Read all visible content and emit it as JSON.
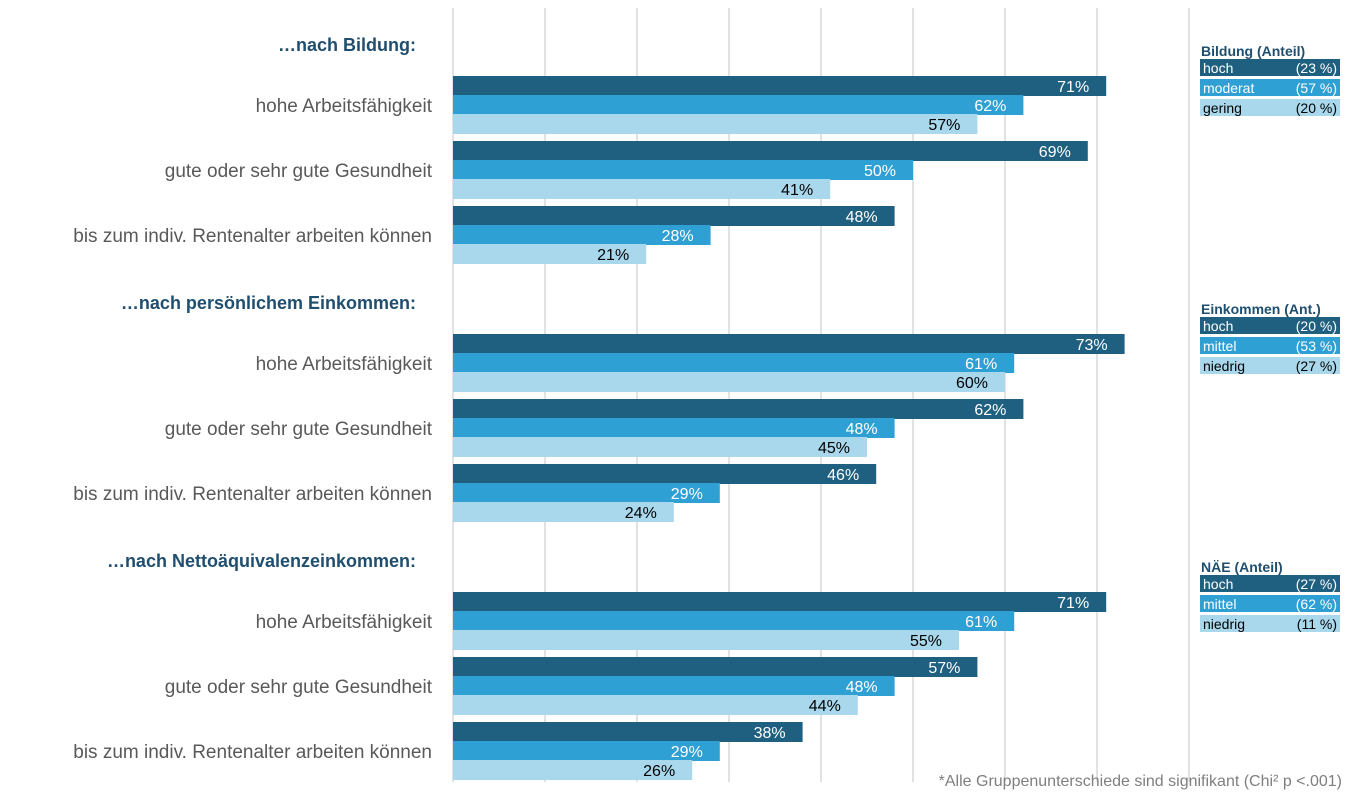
{
  "chart_data": {
    "type": "bar",
    "orientation": "horizontal",
    "xlim": [
      0,
      100
    ],
    "grid": true,
    "colors": {
      "hoch": "#1f6080",
      "mittel": "#2fa0d4",
      "niedrig": "#a9d8ec"
    },
    "groups": [
      {
        "title": "…nach Bildung:",
        "legend": {
          "title": "Bildung (Anteil)",
          "items": [
            {
              "name": "hoch",
              "share": "(23 %)"
            },
            {
              "name": "moderat",
              "share": "(57 %)"
            },
            {
              "name": "gering",
              "share": "(20 %)"
            }
          ]
        },
        "categories": [
          {
            "label": "hohe Arbeitsfähigkeit",
            "values": [
              71,
              62,
              57
            ]
          },
          {
            "label": "gute oder sehr gute Gesundheit",
            "values": [
              69,
              50,
              41
            ]
          },
          {
            "label": "bis zum indiv. Rentenalter arbeiten können",
            "values": [
              48,
              28,
              21
            ]
          }
        ]
      },
      {
        "title": "…nach persönlichem Einkommen:",
        "legend": {
          "title": "Einkommen (Ant.)",
          "items": [
            {
              "name": "hoch",
              "share": "(20 %)"
            },
            {
              "name": "mittel",
              "share": "(53 %)"
            },
            {
              "name": "niedrig",
              "share": "(27 %)"
            }
          ]
        },
        "categories": [
          {
            "label": "hohe Arbeitsfähigkeit",
            "values": [
              73,
              61,
              60
            ]
          },
          {
            "label": "gute oder sehr gute Gesundheit",
            "values": [
              62,
              48,
              45
            ]
          },
          {
            "label": "bis zum indiv. Rentenalter arbeiten können",
            "values": [
              46,
              29,
              24
            ]
          }
        ]
      },
      {
        "title": "…nach Nettoäquivalenzeinkommen:",
        "legend": {
          "title": "NÄE (Anteil)",
          "items": [
            {
              "name": "hoch",
              "share": "(27 %)"
            },
            {
              "name": "mittel",
              "share": "(62 %)"
            },
            {
              "name": "niedrig",
              "share": "(11 %)"
            }
          ]
        },
        "categories": [
          {
            "label": "hohe Arbeitsfähigkeit",
            "values": [
              71,
              61,
              55
            ]
          },
          {
            "label": "gute oder sehr gute Gesundheit",
            "values": [
              57,
              48,
              44
            ]
          },
          {
            "label": "bis zum indiv. Rentenalter arbeiten können",
            "values": [
              38,
              29,
              26
            ]
          }
        ]
      }
    ],
    "footnote": "*Alle Gruppenunterschiede sind signifikant (Chi² p <.001)"
  }
}
